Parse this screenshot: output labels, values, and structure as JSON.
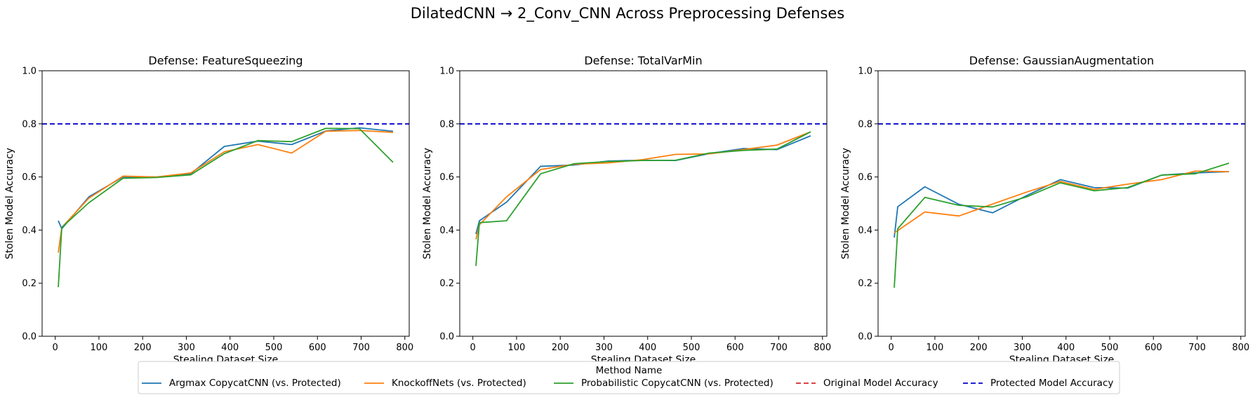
{
  "figure": {
    "title": "DilatedCNN → 2_Conv_CNN Across Preprocessing Defenses"
  },
  "legend": {
    "title": "Method Name",
    "placement": "bottom-center",
    "entries": [
      {
        "label": "Argmax CopycatCNN (vs. Protected)",
        "color": "#1f77b4",
        "style": "solid"
      },
      {
        "label": "KnockoffNets (vs. Protected)",
        "color": "#ff7f0e",
        "style": "solid"
      },
      {
        "label": "Probabilistic CopycatCNN (vs. Protected)",
        "color": "#2ca02c",
        "style": "solid"
      },
      {
        "label": "Original Model Accuracy",
        "color": "#d62728",
        "style": "dashed"
      },
      {
        "label": "Protected Model Accuracy",
        "color": "#0000cc",
        "style": "dashed"
      }
    ]
  },
  "chart_data": [
    {
      "type": "line",
      "title": "Defense: FeatureSqueezing",
      "xlabel": "Stealing Dataset Size",
      "ylabel": "Stolen Model Accuracy",
      "xlim": [
        -30,
        810
      ],
      "ylim": [
        0.0,
        1.0
      ],
      "xticks": [
        "0",
        "100",
        "200",
        "300",
        "400",
        "500",
        "600",
        "700",
        "800"
      ],
      "yticks": [
        "0.0",
        "0.2",
        "0.4",
        "0.6",
        "0.8",
        "1.0"
      ],
      "protected_accuracy": 0.8,
      "grid": false,
      "series": [
        {
          "name": "Argmax CopycatCNN (vs. Protected)",
          "color": "#1f77b4",
          "x": [
            7,
            15,
            77,
            155,
            232,
            310,
            387,
            464,
            541,
            619,
            696,
            773
          ],
          "y": [
            0.435,
            0.405,
            0.525,
            0.6,
            0.6,
            0.612,
            0.715,
            0.735,
            0.722,
            0.773,
            0.785,
            0.772
          ]
        },
        {
          "name": "KnockoffNets (vs. Protected)",
          "color": "#ff7f0e",
          "x": [
            7,
            15,
            77,
            155,
            232,
            310,
            387,
            464,
            541,
            619,
            696,
            773
          ],
          "y": [
            0.315,
            0.41,
            0.52,
            0.603,
            0.6,
            0.615,
            0.695,
            0.722,
            0.69,
            0.772,
            0.775,
            0.768
          ]
        },
        {
          "name": "Probabilistic CopycatCNN (vs. Protected)",
          "color": "#2ca02c",
          "x": [
            7,
            15,
            77,
            155,
            232,
            310,
            387,
            464,
            541,
            619,
            696,
            773
          ],
          "y": [
            0.185,
            0.41,
            0.503,
            0.595,
            0.598,
            0.608,
            0.688,
            0.737,
            0.733,
            0.783,
            0.782,
            0.655
          ]
        }
      ]
    },
    {
      "type": "line",
      "title": "Defense: TotalVarMin",
      "xlabel": "Stealing Dataset Size",
      "ylabel": "Stolen Model Accuracy",
      "xlim": [
        -30,
        810
      ],
      "ylim": [
        0.0,
        1.0
      ],
      "xticks": [
        "0",
        "100",
        "200",
        "300",
        "400",
        "500",
        "600",
        "700",
        "800"
      ],
      "yticks": [
        "0.0",
        "0.2",
        "0.4",
        "0.6",
        "0.8",
        "1.0"
      ],
      "protected_accuracy": 0.8,
      "grid": false,
      "series": [
        {
          "name": "Argmax CopycatCNN (vs. Protected)",
          "color": "#1f77b4",
          "x": [
            7,
            15,
            77,
            155,
            232,
            310,
            387,
            464,
            541,
            619,
            696,
            773
          ],
          "y": [
            0.385,
            0.435,
            0.505,
            0.64,
            0.645,
            0.66,
            0.663,
            0.662,
            0.688,
            0.707,
            0.703,
            0.755
          ]
        },
        {
          "name": "KnockoffNets (vs. Protected)",
          "color": "#ff7f0e",
          "x": [
            7,
            15,
            77,
            155,
            232,
            310,
            387,
            464,
            541,
            619,
            696,
            773
          ],
          "y": [
            0.365,
            0.42,
            0.525,
            0.628,
            0.648,
            0.653,
            0.665,
            0.685,
            0.687,
            0.703,
            0.72,
            0.77
          ]
        },
        {
          "name": "Probabilistic CopycatCNN (vs. Protected)",
          "color": "#2ca02c",
          "x": [
            7,
            15,
            77,
            155,
            232,
            310,
            387,
            464,
            541,
            619,
            696,
            773
          ],
          "y": [
            0.265,
            0.428,
            0.435,
            0.612,
            0.65,
            0.658,
            0.662,
            0.663,
            0.69,
            0.7,
            0.705,
            0.77
          ]
        }
      ]
    },
    {
      "type": "line",
      "title": "Defense: GaussianAugmentation",
      "xlabel": "Stealing Dataset Size",
      "ylabel": "Stolen Model Accuracy",
      "xlim": [
        -30,
        810
      ],
      "ylim": [
        0.0,
        1.0
      ],
      "xticks": [
        "0",
        "100",
        "200",
        "300",
        "400",
        "500",
        "600",
        "700",
        "800"
      ],
      "yticks": [
        "0.0",
        "0.2",
        "0.4",
        "0.6",
        "0.8",
        "1.0"
      ],
      "protected_accuracy": 0.8,
      "grid": false,
      "series": [
        {
          "name": "Argmax CopycatCNN (vs. Protected)",
          "color": "#1f77b4",
          "x": [
            7,
            15,
            77,
            155,
            232,
            310,
            387,
            464,
            541,
            619,
            696,
            773
          ],
          "y": [
            0.372,
            0.488,
            0.563,
            0.497,
            0.465,
            0.53,
            0.59,
            0.56,
            0.558,
            0.607,
            0.615,
            0.62
          ]
        },
        {
          "name": "KnockoffNets (vs. Protected)",
          "color": "#ff7f0e",
          "x": [
            7,
            15,
            77,
            155,
            232,
            310,
            387,
            464,
            541,
            619,
            696,
            773
          ],
          "y": [
            0.39,
            0.398,
            0.468,
            0.453,
            0.498,
            0.543,
            0.583,
            0.553,
            0.573,
            0.59,
            0.622,
            0.62
          ]
        },
        {
          "name": "Probabilistic CopycatCNN (vs. Protected)",
          "color": "#2ca02c",
          "x": [
            7,
            15,
            77,
            155,
            232,
            310,
            387,
            464,
            541,
            619,
            696,
            773
          ],
          "y": [
            0.183,
            0.405,
            0.523,
            0.493,
            0.487,
            0.525,
            0.578,
            0.548,
            0.56,
            0.607,
            0.612,
            0.652
          ]
        }
      ]
    }
  ]
}
